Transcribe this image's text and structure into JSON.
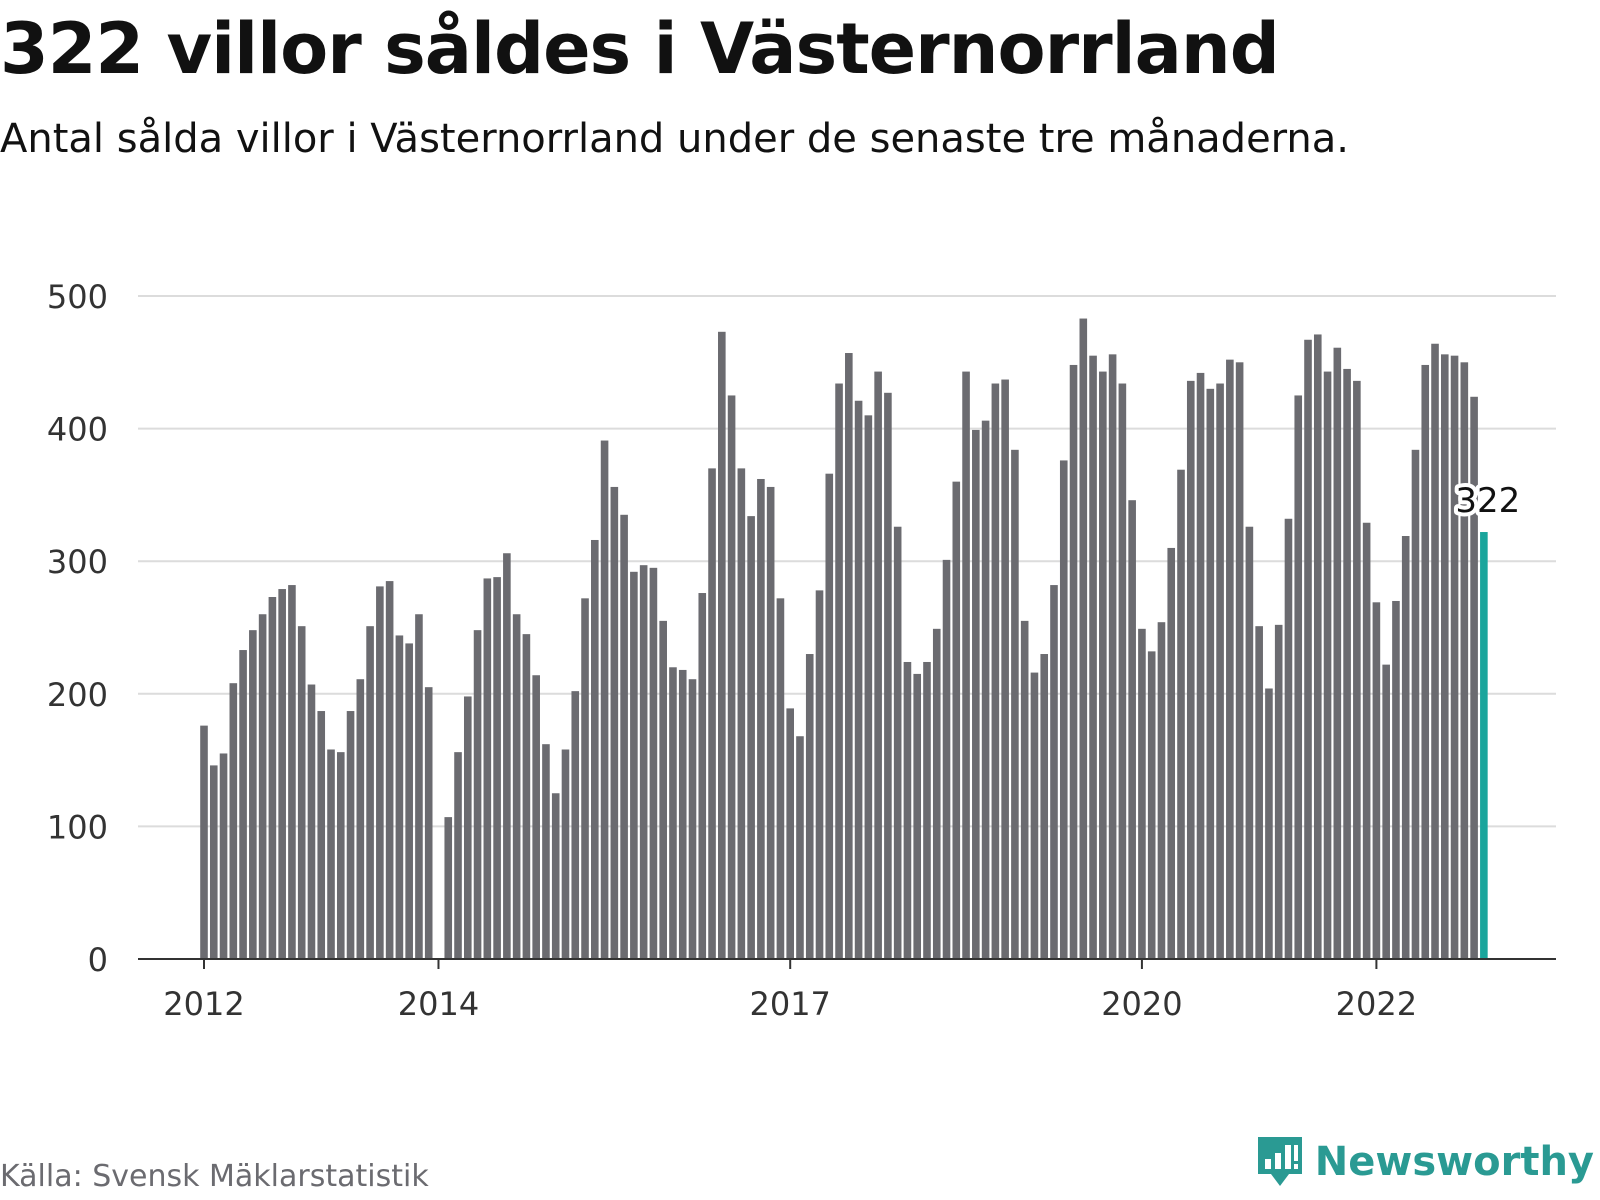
{
  "header": {
    "title": "322 villor såldes i Västernorrland",
    "subtitle": "Antal sålda villor i Västernorrland under de senaste tre månaderna."
  },
  "footer": {
    "source": "Källa: Svensk Mäklarstatistik",
    "brand": "Newsworthy"
  },
  "colors": {
    "bar": "#6b6b70",
    "highlight": "#1aa59c",
    "grid": "#dcdcdc",
    "axis": "#333333",
    "text": "#333333",
    "brand": "#2a9a93"
  },
  "icons": {
    "brand_logo": "bar-chart-speech-bubble-icon"
  },
  "chart_data": {
    "type": "bar",
    "title": "322 villor såldes i Västernorrland",
    "subtitle": "Antal sålda villor i Västernorrland under de senaste tre månaderna.",
    "xlabel": "",
    "ylabel": "",
    "ylim": [
      0,
      500
    ],
    "yticks": [
      "0",
      "100",
      "200",
      "300",
      "400",
      "500"
    ],
    "grid": true,
    "legend": "none",
    "xticks": [
      {
        "label": "2012",
        "index": 0
      },
      {
        "label": "2014",
        "index": 24
      },
      {
        "label": "2017",
        "index": 60
      },
      {
        "label": "2020",
        "index": 96
      },
      {
        "label": "2022",
        "index": 120
      }
    ],
    "annotation": {
      "label": "322",
      "index": 131
    },
    "series": [
      {
        "highlight_index": 131,
        "values": [
          176,
          146,
          155,
          208,
          233,
          248,
          260,
          273,
          279,
          282,
          251,
          207,
          187,
          158,
          156,
          187,
          211,
          251,
          281,
          285,
          244,
          238,
          260,
          205,
          0,
          107,
          156,
          198,
          248,
          287,
          288,
          306,
          260,
          245,
          214,
          162,
          125,
          158,
          202,
          272,
          316,
          391,
          356,
          335,
          292,
          297,
          295,
          255,
          220,
          218,
          211,
          276,
          370,
          473,
          425,
          370,
          334,
          362,
          356,
          272,
          189,
          168,
          230,
          278,
          366,
          434,
          457,
          421,
          410,
          443,
          427,
          326,
          224,
          215,
          224,
          249,
          301,
          360,
          443,
          399,
          406,
          434,
          437,
          384,
          255,
          216,
          230,
          282,
          376,
          448,
          483,
          455,
          443,
          456,
          434,
          346,
          249,
          232,
          254,
          310,
          369,
          436,
          442,
          430,
          434,
          452,
          450,
          326,
          251,
          204,
          252,
          332,
          425,
          467,
          471,
          443,
          461,
          445,
          436,
          329,
          269,
          222,
          270,
          319,
          384,
          448,
          464,
          456,
          455,
          450,
          424,
          322
        ]
      }
    ]
  }
}
